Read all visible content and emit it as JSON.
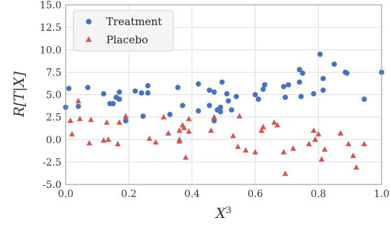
{
  "chart_data": {
    "type": "scatter",
    "xlabel": "X^3",
    "ylabel": "R[T|X]",
    "xlim": [
      0.0,
      1.0
    ],
    "ylim": [
      -5.0,
      15.0
    ],
    "xticks": [
      "0.0",
      "0.2",
      "0.4",
      "0.6",
      "0.8",
      "1.0"
    ],
    "yticks": [
      "-5.0",
      "-2.5",
      "0.0",
      "2.5",
      "5.0",
      "7.5",
      "10.0",
      "12.5",
      "15.0"
    ],
    "grid": true,
    "legend_position": "top-left",
    "series": [
      {
        "name": "Treatment",
        "marker": "circle",
        "color": "#4472c4",
        "points": [
          [
            0.0,
            3.6
          ],
          [
            0.01,
            5.7
          ],
          [
            0.04,
            3.7
          ],
          [
            0.07,
            5.8
          ],
          [
            0.12,
            5.1
          ],
          [
            0.14,
            4.0
          ],
          [
            0.15,
            4.0
          ],
          [
            0.16,
            4.7
          ],
          [
            0.17,
            4.5
          ],
          [
            0.17,
            5.3
          ],
          [
            0.19,
            2.1
          ],
          [
            0.22,
            5.4
          ],
          [
            0.24,
            5.2
          ],
          [
            0.245,
            2.6
          ],
          [
            0.26,
            6.0
          ],
          [
            0.26,
            5.2
          ],
          [
            0.33,
            2.8
          ],
          [
            0.355,
            5.8
          ],
          [
            0.37,
            3.8
          ],
          [
            0.42,
            6.2
          ],
          [
            0.42,
            3.2
          ],
          [
            0.455,
            3.8
          ],
          [
            0.455,
            5.5
          ],
          [
            0.47,
            5.3
          ],
          [
            0.47,
            2.1
          ],
          [
            0.48,
            3.3
          ],
          [
            0.49,
            3.1
          ],
          [
            0.49,
            3.6
          ],
          [
            0.495,
            6.4
          ],
          [
            0.51,
            5.1
          ],
          [
            0.515,
            4.3
          ],
          [
            0.525,
            3.3
          ],
          [
            0.54,
            4.8
          ],
          [
            0.6,
            5.0
          ],
          [
            0.61,
            4.5
          ],
          [
            0.625,
            5.6
          ],
          [
            0.63,
            6.1
          ],
          [
            0.69,
            5.9
          ],
          [
            0.695,
            4.7
          ],
          [
            0.705,
            6.1
          ],
          [
            0.74,
            7.8
          ],
          [
            0.74,
            6.4
          ],
          [
            0.745,
            4.8
          ],
          [
            0.75,
            7.4
          ],
          [
            0.785,
            5.1
          ],
          [
            0.805,
            9.5
          ],
          [
            0.815,
            6.8
          ],
          [
            0.815,
            5.5
          ],
          [
            0.85,
            8.4
          ],
          [
            0.885,
            7.5
          ],
          [
            0.89,
            7.4
          ],
          [
            0.945,
            4.5
          ],
          [
            1.0,
            7.5
          ]
        ]
      },
      {
        "name": "Placebo",
        "marker": "triangle",
        "color": "#d9534f",
        "points": [
          [
            0.015,
            2.1
          ],
          [
            0.02,
            0.6
          ],
          [
            0.04,
            4.3
          ],
          [
            0.045,
            2.3
          ],
          [
            0.075,
            -0.4
          ],
          [
            0.08,
            2.2
          ],
          [
            0.12,
            -0.1
          ],
          [
            0.13,
            1.9
          ],
          [
            0.135,
            0.0
          ],
          [
            0.165,
            -0.5
          ],
          [
            0.17,
            1.9
          ],
          [
            0.19,
            2.6
          ],
          [
            0.265,
            0.1
          ],
          [
            0.285,
            -0.3
          ],
          [
            0.31,
            2.5
          ],
          [
            0.325,
            0.7
          ],
          [
            0.36,
            1.0
          ],
          [
            0.36,
            0.0
          ],
          [
            0.36,
            -0.2
          ],
          [
            0.37,
            1.6
          ],
          [
            0.375,
            1.3
          ],
          [
            0.38,
            -2.0
          ],
          [
            0.39,
            2.3
          ],
          [
            0.39,
            0.9
          ],
          [
            0.46,
            1.0
          ],
          [
            0.47,
            2.5
          ],
          [
            0.53,
            0.4
          ],
          [
            0.545,
            -0.8
          ],
          [
            0.55,
            2.6
          ],
          [
            0.57,
            -1.2
          ],
          [
            0.6,
            -1.4
          ],
          [
            0.62,
            1.0
          ],
          [
            0.625,
            1.4
          ],
          [
            0.66,
            1.9
          ],
          [
            0.67,
            1.6
          ],
          [
            0.69,
            -1.4
          ],
          [
            0.695,
            -3.8
          ],
          [
            0.72,
            -1.0
          ],
          [
            0.77,
            -0.5
          ],
          [
            0.785,
            1.0
          ],
          [
            0.79,
            0.0
          ],
          [
            0.8,
            0.6
          ],
          [
            0.81,
            -2.2
          ],
          [
            0.82,
            -1.1
          ],
          [
            0.87,
            0.7
          ],
          [
            0.895,
            -0.5
          ],
          [
            0.91,
            -1.8
          ],
          [
            0.92,
            -3.1
          ],
          [
            0.945,
            -0.5
          ]
        ]
      }
    ]
  },
  "colors": {
    "plot_bg": "#ffffff",
    "grid": "#dcdcdc",
    "frame": "#8c8c8c"
  }
}
